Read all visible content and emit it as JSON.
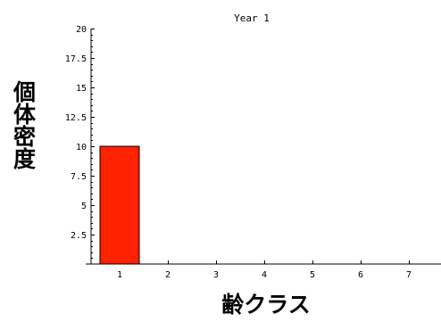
{
  "chart_data": {
    "type": "bar",
    "title": "Year 1",
    "xlabel": "齢クラス",
    "ylabel": "個体密度",
    "categories": [
      "1",
      "2",
      "3",
      "4",
      "5",
      "6",
      "7"
    ],
    "values": [
      10,
      0,
      0,
      0,
      0,
      0,
      0
    ],
    "ylim": [
      0,
      20
    ],
    "yticks": [
      "2.5",
      "5",
      "7.5",
      "10",
      "12.5",
      "15",
      "17.5",
      "20"
    ],
    "bar_color": "#ff2200",
    "grid": false
  }
}
